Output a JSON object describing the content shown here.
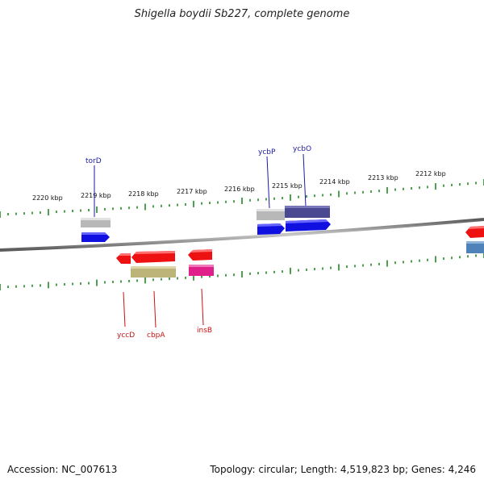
{
  "title": "Shigella boydii Sb227, complete genome",
  "footer": {
    "accession": "Accession: NC_007613",
    "summary": "Topology: circular; Length: 4,519,823 bp; Genes: 4,246"
  },
  "ruler": {
    "labels": [
      "2220 kbp",
      "2219 kbp",
      "2218 kbp",
      "2217 kbp",
      "2216 kbp",
      "2215 kbp",
      "2214 kbp",
      "2213 kbp",
      "2212 kbp"
    ]
  },
  "genes_forward": [
    {
      "name": "torD",
      "color": "#1010e0"
    },
    {
      "name": "ycbP",
      "color": "#1010e0"
    },
    {
      "name": "ycbO",
      "color": "#1010e0"
    }
  ],
  "genes_reverse": [
    {
      "name": "yccD",
      "color": "#ee1111"
    },
    {
      "name": "cbpA",
      "color": "#ee1111"
    },
    {
      "name": "insB",
      "color": "#ee1111"
    }
  ],
  "colors": {
    "backbone": "#8a8a8a",
    "tick": "#1f8a1f",
    "forward_label": "#1a1aa8",
    "reverse_label": "#cc1111",
    "cog_gray": "#b8b8b8",
    "cog_navy": "#4a4890",
    "cog_olive": "#bdb47a",
    "cog_magenta": "#e0208a",
    "cog_steel": "#4f82b8"
  }
}
